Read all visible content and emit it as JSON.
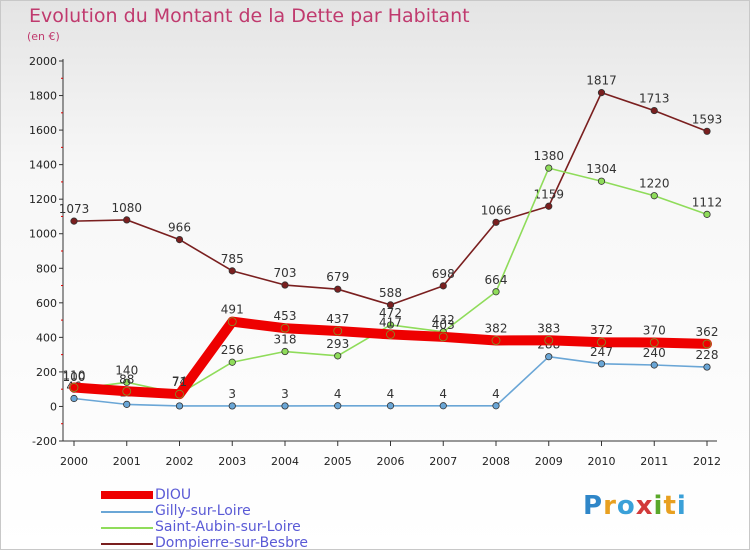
{
  "header": {
    "title": "Evolution du Montant de la Dette par Habitant",
    "subtitle": "(en €)"
  },
  "logo": {
    "text": "Proxiti",
    "colors": [
      "#2f86c8",
      "#e8a020",
      "#3aa0d8",
      "#d23a3a",
      "#5aa82a",
      "#e8a020",
      "#3aa0d8"
    ]
  },
  "chart_data": {
    "type": "line",
    "title": "Evolution du Montant de la Dette par Habitant",
    "ylabel": "(en €)",
    "xlabel": "",
    "x": [
      "2000",
      "2001",
      "2002",
      "2003",
      "2004",
      "2005",
      "2006",
      "2007",
      "2008",
      "2009",
      "2010",
      "2011",
      "2012"
    ],
    "ylim": [
      -200,
      2000
    ],
    "yticks": [
      "-200",
      "0",
      "200",
      "400",
      "600",
      "800",
      "1000",
      "1200",
      "1400",
      "1600",
      "1800",
      "2000"
    ],
    "grid": false,
    "legend_position": "bottom-left",
    "series": [
      {
        "name": "Dompierre-sur-Besbre",
        "color": "#7a1f1f",
        "values": [
          1073,
          1080,
          966,
          785,
          703,
          679,
          588,
          698,
          1066,
          1159,
          1817,
          1713,
          1593
        ],
        "labels": [
          "1073",
          "1080",
          "966",
          "785",
          "703",
          "679",
          "588",
          "698",
          "1066",
          "1159",
          "1817",
          "1713",
          "1593"
        ]
      },
      {
        "name": "Saint-Aubin-sur-Loire",
        "color": "#8fdc5a",
        "values": [
          100,
          140,
          74,
          256,
          318,
          293,
          472,
          432,
          664,
          1380,
          1304,
          1220,
          1112
        ],
        "labels": [
          "100",
          "140",
          "74",
          "256",
          "318",
          "293",
          "472",
          "432",
          "664",
          "1380",
          "1304",
          "1220",
          "1112"
        ]
      },
      {
        "name": "Gilly-sur-Loire",
        "color": "#6aa6d6",
        "values": [
          46,
          12,
          3,
          3,
          3,
          4,
          4,
          4,
          4,
          288,
          247,
          240,
          228
        ],
        "labels": [
          "46",
          "12",
          "",
          "3",
          "3",
          "4",
          "4",
          "4",
          "4",
          "288",
          "247",
          "240",
          "228"
        ]
      },
      {
        "name": "DIOU",
        "color": "#ee0000",
        "values": [
          110,
          88,
          71,
          491,
          453,
          437,
          417,
          403,
          382,
          383,
          372,
          370,
          362
        ],
        "labels": [
          "110",
          "88",
          "71",
          "491",
          "453",
          "437",
          "417",
          "403",
          "382",
          "383",
          "372",
          "370",
          "362"
        ]
      }
    ]
  },
  "legend": [
    {
      "name": "DIOU",
      "color": "#ee0000",
      "thick": true
    },
    {
      "name": "Gilly-sur-Loire",
      "color": "#6aa6d6",
      "thick": false
    },
    {
      "name": "Saint-Aubin-sur-Loire",
      "color": "#8fdc5a",
      "thick": false
    },
    {
      "name": "Dompierre-sur-Besbre",
      "color": "#7a1f1f",
      "thick": false
    }
  ]
}
